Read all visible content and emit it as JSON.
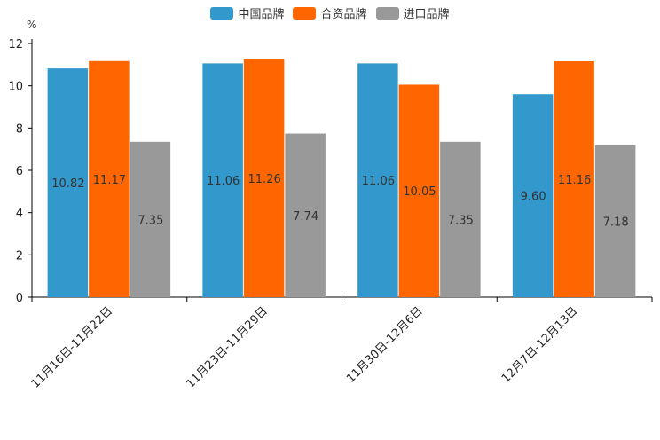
{
  "chart_data": {
    "type": "bar",
    "title": "",
    "ylabel": "%",
    "xlabel": "",
    "ylim": [
      0,
      12
    ],
    "yticks": [
      0,
      2,
      4,
      6,
      8,
      10,
      12
    ],
    "categories": [
      "11月16日-11月22日",
      "11月23日-11月29日",
      "11月30日-12月6日",
      "12月7日-12月13日"
    ],
    "series": [
      {
        "name": "中国品牌",
        "color": "#3398cc",
        "values": [
          10.82,
          11.06,
          11.06,
          9.6
        ],
        "labels": [
          "10.82",
          "11.06",
          "11.06",
          "9.60"
        ]
      },
      {
        "name": "合资品牌",
        "color": "#ff6600",
        "values": [
          11.17,
          11.26,
          10.05,
          11.16
        ],
        "labels": [
          "11.17",
          "11.26",
          "10.05",
          "11.16"
        ]
      },
      {
        "name": "进口品牌",
        "color": "#999999",
        "values": [
          7.35,
          7.74,
          7.35,
          7.18
        ],
        "labels": [
          "7.35",
          "7.74",
          "7.35",
          "7.18"
        ]
      }
    ],
    "legend_position": "top-center",
    "grid": false
  }
}
